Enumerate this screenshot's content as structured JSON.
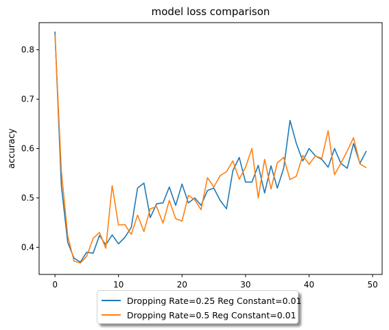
{
  "chart_data": {
    "type": "line",
    "title": "model loss comparison",
    "xlabel": "",
    "ylabel": "accuracy",
    "xlim": [
      -2.5,
      51.5
    ],
    "ylim": [
      0.345,
      0.855
    ],
    "xticks": [
      0,
      10,
      20,
      30,
      40,
      50
    ],
    "yticks": [
      0.4,
      0.5,
      0.6,
      0.7,
      0.8
    ],
    "ytick_labels": [
      "0.4",
      "0.5",
      "0.6",
      "0.7",
      "0.8"
    ],
    "grid": false,
    "legend_placement": "bottom-center-outside",
    "x": [
      0,
      1,
      2,
      3,
      4,
      5,
      6,
      7,
      8,
      9,
      10,
      11,
      12,
      13,
      14,
      15,
      16,
      17,
      18,
      19,
      20,
      21,
      22,
      23,
      24,
      25,
      26,
      27,
      28,
      29,
      30,
      31,
      32,
      33,
      34,
      35,
      36,
      37,
      38,
      39,
      40,
      41,
      42,
      43,
      44,
      45,
      46,
      47,
      48,
      49
    ],
    "series": [
      {
        "name": "Dropping Rate=0.25 Reg Constant=0.01",
        "color": "#1f77b4",
        "values": [
          0.837,
          0.525,
          0.41,
          0.378,
          0.37,
          0.39,
          0.388,
          0.424,
          0.405,
          0.425,
          0.407,
          0.42,
          0.44,
          0.52,
          0.53,
          0.46,
          0.488,
          0.49,
          0.522,
          0.485,
          0.528,
          0.49,
          0.5,
          0.485,
          0.515,
          0.52,
          0.495,
          0.478,
          0.555,
          0.582,
          0.532,
          0.532,
          0.566,
          0.51,
          0.565,
          0.52,
          0.56,
          0.657,
          0.61,
          0.575,
          0.6,
          0.585,
          0.578,
          0.562,
          0.6,
          0.57,
          0.56,
          0.61,
          0.57,
          0.595
        ]
      },
      {
        "name": "Dropping Rate=0.5 Reg Constant=0.01",
        "color": "#ff7f0e",
        "values": [
          0.83,
          0.555,
          0.423,
          0.372,
          0.368,
          0.382,
          0.418,
          0.43,
          0.398,
          0.525,
          0.445,
          0.446,
          0.426,
          0.465,
          0.432,
          0.478,
          0.482,
          0.449,
          0.495,
          0.458,
          0.453,
          0.505,
          0.496,
          0.476,
          0.541,
          0.522,
          0.545,
          0.553,
          0.575,
          0.538,
          0.562,
          0.6,
          0.5,
          0.578,
          0.518,
          0.571,
          0.582,
          0.537,
          0.544,
          0.586,
          0.568,
          0.585,
          0.58,
          0.636,
          0.547,
          0.57,
          0.595,
          0.622,
          0.569,
          0.561
        ]
      }
    ]
  }
}
